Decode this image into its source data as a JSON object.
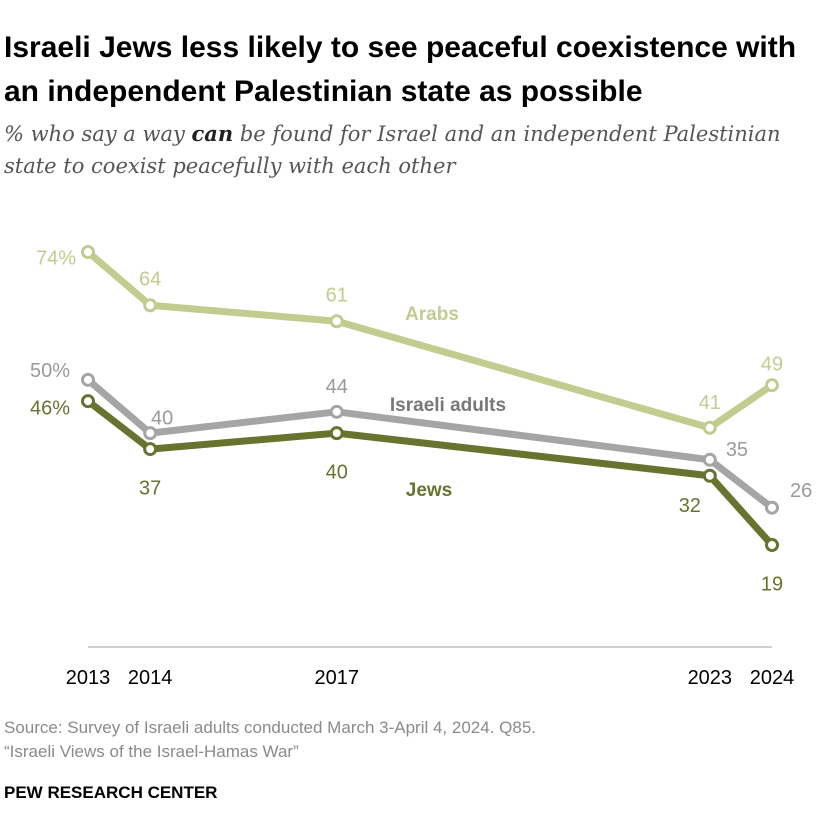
{
  "title": "Israeli Jews less likely to see peaceful coexistence with an independent Palestinian state as possible",
  "subtitle": {
    "before": "% who say a way ",
    "emphasis": "can",
    "after": " be found for Israel and an independent Palestinian state to coexist peacefully with each other"
  },
  "source": {
    "line1": "Source: Survey of Israeli adults conducted March 3-April 4, 2024. Q85.",
    "line2": "“Israeli Views of the Israel-Hamas War”"
  },
  "brand": "PEW RESEARCH CENTER",
  "colors": {
    "arabs": "#c2cc8f",
    "israeli_adults": "#a5a5a5",
    "jews": "#67732f",
    "text_dark": "#222222",
    "label_gray": "#9a9a9a"
  },
  "chart_data": {
    "type": "line",
    "x": [
      2013,
      2014,
      2017,
      2023,
      2024
    ],
    "x_tick_labels": [
      "2013",
      "2014",
      "2017",
      "2023",
      "2024"
    ],
    "ylim": [
      0,
      80
    ],
    "grid": false,
    "series": [
      {
        "name": "Arabs",
        "key": "arabs",
        "values": [
          74,
          64,
          61,
          41,
          49
        ],
        "labels": [
          "74%",
          "64",
          "61",
          "41",
          "49"
        ]
      },
      {
        "name": "Israeli adults",
        "key": "israeli_adults",
        "values": [
          50,
          40,
          44,
          35,
          26
        ],
        "labels": [
          "50%",
          "40",
          "44",
          "35",
          "26"
        ]
      },
      {
        "name": "Jews",
        "key": "jews",
        "values": [
          46,
          37,
          40,
          32,
          19
        ],
        "labels": [
          "46%",
          "37",
          "40",
          "32",
          "19"
        ]
      }
    ]
  }
}
